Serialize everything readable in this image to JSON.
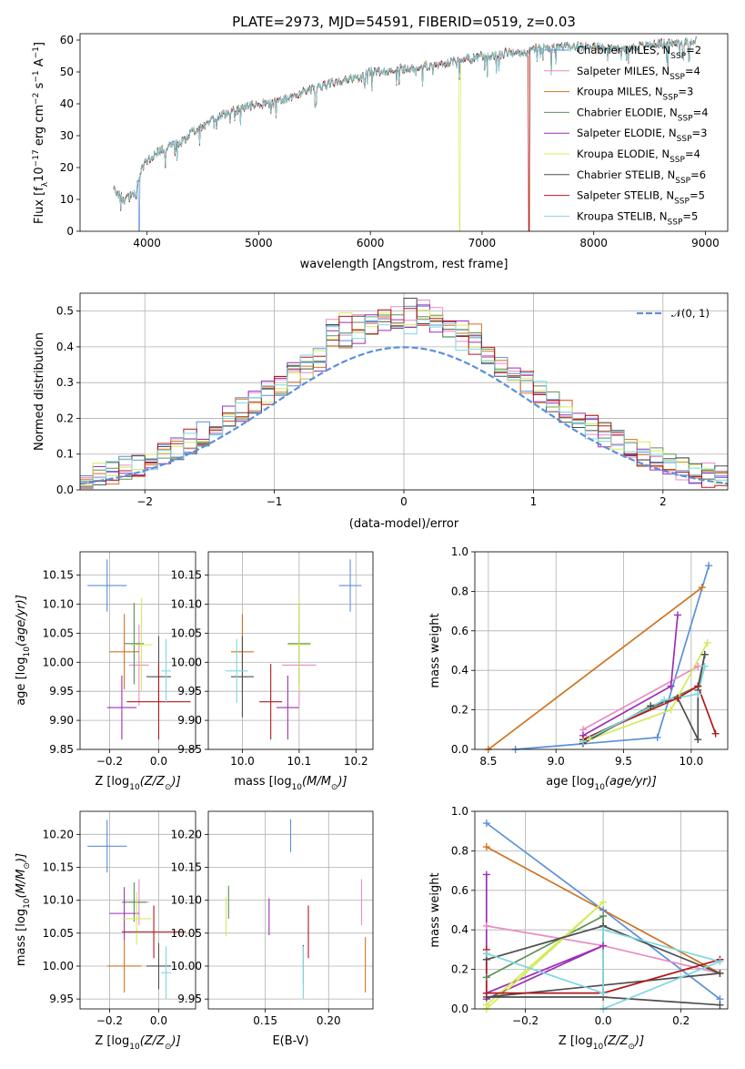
{
  "figure": {
    "title": "PLATE=2973, MJD=54591, FIBERID=0519, z=0.03"
  },
  "colors": {
    "Chabrier MILES": "#5b8fdb",
    "Salpeter MILES": "#e98cc3",
    "Kroupa MILES": "#cf7320",
    "Chabrier ELODIE": "#5e8f5a",
    "Salpeter ELODIE": "#9c2fb6",
    "Kroupa ELODIE": "#d4ea5a",
    "Chabrier STELIB": "#4e4e4e",
    "Salpeter STELIB": "#b3181b",
    "Kroupa STELIB": "#7fd7de"
  },
  "chart_data": [
    {
      "id": "spectrum",
      "type": "line",
      "title": "PLATE=2973, MJD=54591, FIBERID=0519, z=0.03",
      "xlabel": "wavelength [Angstrom, rest frame]",
      "ylabel_parts": [
        "Flux [f",
        "λ",
        "10",
        "−17",
        " erg cm",
        "−2",
        " s",
        "−1",
        " A",
        "−1",
        "]"
      ],
      "xlim": [
        3400,
        9200
      ],
      "ylim": [
        0,
        62
      ],
      "xticks": [
        4000,
        5000,
        6000,
        7000,
        8000,
        9000
      ],
      "yticks": [
        0,
        10,
        20,
        30,
        40,
        50,
        60
      ],
      "grid": false,
      "legend": "right",
      "legend_entries": [
        {
          "model": "Chabrier MILES",
          "n": "2"
        },
        {
          "model": "Salpeter MILES",
          "n": "4"
        },
        {
          "model": "Kroupa MILES",
          "n": "3"
        },
        {
          "model": "Chabrier ELODIE",
          "n": "4"
        },
        {
          "model": "Salpeter ELODIE",
          "n": "3"
        },
        {
          "model": "Kroupa ELODIE",
          "n": "4"
        },
        {
          "model": "Chabrier STELIB",
          "n": "6"
        },
        {
          "model": "Salpeter STELIB",
          "n": "5"
        },
        {
          "model": "Kroupa STELIB",
          "n": "5"
        }
      ],
      "legend_sub": "SSP",
      "continuum": [
        [
          3700,
          13
        ],
        [
          3800,
          10
        ],
        [
          3900,
          12
        ],
        [
          3950,
          20
        ],
        [
          4000,
          22
        ],
        [
          4100,
          25
        ],
        [
          4200,
          27
        ],
        [
          4300,
          28
        ],
        [
          4400,
          31
        ],
        [
          4500,
          33
        ],
        [
          4600,
          35
        ],
        [
          4700,
          37
        ],
        [
          4800,
          38
        ],
        [
          4900,
          39
        ],
        [
          5000,
          40
        ],
        [
          5100,
          40
        ],
        [
          5200,
          41
        ],
        [
          5300,
          42
        ],
        [
          5400,
          44
        ],
        [
          5500,
          45
        ],
        [
          5600,
          46
        ],
        [
          5700,
          47
        ],
        [
          5800,
          48
        ],
        [
          5900,
          48
        ],
        [
          6000,
          50
        ],
        [
          6100,
          50
        ],
        [
          6200,
          51
        ],
        [
          6300,
          51
        ],
        [
          6400,
          51
        ],
        [
          6500,
          52
        ],
        [
          6600,
          52
        ],
        [
          6700,
          53
        ],
        [
          6800,
          54
        ],
        [
          6900,
          54
        ],
        [
          7000,
          55
        ],
        [
          7100,
          55
        ],
        [
          7200,
          56
        ],
        [
          7300,
          56
        ],
        [
          7400,
          56
        ],
        [
          7500,
          58
        ],
        [
          7600,
          57
        ],
        [
          7700,
          58
        ],
        [
          7800,
          58
        ],
        [
          7900,
          58
        ],
        [
          8000,
          58
        ],
        [
          8200,
          57
        ],
        [
          8400,
          58
        ],
        [
          8600,
          59
        ],
        [
          8800,
          59
        ],
        [
          8900,
          60
        ]
      ],
      "dips": [
        {
          "model": "Kroupa ELODIE",
          "wavelength": 6800
        },
        {
          "model": "Kroupa MILES",
          "wavelength": 7420
        },
        {
          "model": "Chabrier MILES",
          "wavelength": 3930
        },
        {
          "model": "Salpeter STELIB",
          "wavelength": 7420
        }
      ]
    },
    {
      "id": "residuals",
      "type": "line",
      "xlabel": "(data-model)/error",
      "ylabel": "Normed distribution",
      "xlim": [
        -2.5,
        2.5
      ],
      "ylim": [
        0,
        0.55
      ],
      "xticks": [
        -2,
        -1,
        0,
        1,
        2
      ],
      "yticks": [
        0.0,
        0.1,
        0.2,
        0.3,
        0.4,
        0.5
      ],
      "grid": true,
      "legend": "upper right",
      "legend_label": "𝒩(0, 1)",
      "bins": [
        -2.5,
        2.5,
        50
      ]
    },
    {
      "id": "age-vs-Z",
      "type": "scatter",
      "xlabel_parts": [
        "Z [log",
        "10",
        "(Z/Z",
        "⊙",
        ")]"
      ],
      "ylabel_parts": [
        "age  [log",
        "10",
        "(age/yr)]"
      ],
      "xlim": [
        -0.32,
        0.15
      ],
      "ylim": [
        9.85,
        10.19
      ],
      "xticks": [
        -0.2,
        0.0
      ],
      "yticks": [
        9.85,
        9.9,
        9.95,
        10.0,
        10.05,
        10.1,
        10.15
      ],
      "grid": true,
      "points": [
        {
          "model": "Chabrier MILES",
          "x": -0.21,
          "xerr": 0.08,
          "y": 10.132,
          "yerr": 0.045
        },
        {
          "model": "Salpeter MILES",
          "x": -0.08,
          "xerr": 0.04,
          "y": 9.995,
          "yerr": 0.07
        },
        {
          "model": "Kroupa MILES",
          "x": -0.14,
          "xerr": 0.06,
          "y": 10.018,
          "yerr": 0.065
        },
        {
          "model": "Chabrier ELODIE",
          "x": -0.1,
          "xerr": 0.04,
          "y": 10.032,
          "yerr": 0.07
        },
        {
          "model": "Salpeter ELODIE",
          "x": -0.15,
          "xerr": 0.06,
          "y": 9.922,
          "yerr": 0.055
        },
        {
          "model": "Kroupa ELODIE",
          "x": -0.07,
          "xerr": 0.045,
          "y": 10.03,
          "yerr": 0.08
        },
        {
          "model": "Chabrier STELIB",
          "x": 0.0,
          "xerr": 0.05,
          "y": 9.975,
          "yerr": 0.07
        },
        {
          "model": "Salpeter STELIB",
          "x": 0.0,
          "xerr": 0.13,
          "y": 9.932,
          "yerr": 0.065
        },
        {
          "model": "Kroupa STELIB",
          "x": 0.03,
          "xerr": 0.02,
          "y": 9.985,
          "yerr": 0.055
        }
      ]
    },
    {
      "id": "age-vs-mass",
      "type": "scatter",
      "xlabel_parts": [
        "mass [log",
        "10",
        "(M/M",
        "⊙",
        ")]"
      ],
      "ylabel": "",
      "xlim": [
        9.94,
        10.23
      ],
      "ylim": [
        9.85,
        10.19
      ],
      "xticks": [
        10.0,
        10.1,
        10.2
      ],
      "yticks": [
        9.85,
        9.9,
        9.95,
        10.0,
        10.05,
        10.1,
        10.15
      ],
      "grid": true,
      "points": [
        {
          "model": "Chabrier MILES",
          "x": 10.19,
          "xerr": 0.02,
          "y": 10.132,
          "yerr": 0.045
        },
        {
          "model": "Salpeter MILES",
          "x": 10.1,
          "xerr": 0.03,
          "y": 9.995,
          "yerr": 0.07
        },
        {
          "model": "Kroupa MILES",
          "x": 10.0,
          "xerr": 0.02,
          "y": 10.018,
          "yerr": 0.065
        },
        {
          "model": "Chabrier ELODIE",
          "x": 10.1,
          "xerr": 0.02,
          "y": 10.032,
          "yerr": 0.07
        },
        {
          "model": "Salpeter ELODIE",
          "x": 10.08,
          "xerr": 0.02,
          "y": 9.922,
          "yerr": 0.055
        },
        {
          "model": "Kroupa ELODIE",
          "x": 10.1,
          "xerr": 0.02,
          "y": 10.03,
          "yerr": 0.08
        },
        {
          "model": "Chabrier STELIB",
          "x": 10.0,
          "xerr": 0.02,
          "y": 9.975,
          "yerr": 0.07
        },
        {
          "model": "Salpeter STELIB",
          "x": 10.05,
          "xerr": 0.02,
          "y": 9.932,
          "yerr": 0.065
        },
        {
          "model": "Kroupa STELIB",
          "x": 9.99,
          "xerr": 0.02,
          "y": 9.985,
          "yerr": 0.055
        }
      ]
    },
    {
      "id": "weight-vs-age",
      "type": "line",
      "xlabel_parts": [
        "age  [log",
        "10",
        "(age/yr)]"
      ],
      "ylabel": "mass weight",
      "xlim": [
        8.4,
        10.27
      ],
      "ylim": [
        0,
        1.0
      ],
      "xticks": [
        8.5,
        9.0,
        9.5,
        10.0
      ],
      "yticks": [
        0.0,
        0.2,
        0.4,
        0.6,
        0.8,
        1.0
      ],
      "grid": true,
      "series": [
        {
          "model": "Chabrier MILES",
          "points": [
            [
              8.7,
              0.0
            ],
            [
              9.75,
              0.06
            ],
            [
              10.13,
              0.93
            ]
          ]
        },
        {
          "model": "Salpeter MILES",
          "points": [
            [
              9.2,
              0.1
            ],
            [
              10.05,
              0.42
            ]
          ]
        },
        {
          "model": "Kroupa MILES",
          "points": [
            [
              8.5,
              0.0
            ],
            [
              10.08,
              0.82
            ]
          ]
        },
        {
          "model": "Chabrier ELODIE",
          "points": [
            [
              9.2,
              0.05
            ],
            [
              10.05,
              0.32
            ],
            [
              10.1,
              0.48
            ]
          ]
        },
        {
          "model": "Salpeter ELODIE",
          "points": [
            [
              9.2,
              0.07
            ],
            [
              9.85,
              0.32
            ],
            [
              9.9,
              0.68
            ]
          ]
        },
        {
          "model": "Kroupa ELODIE",
          "points": [
            [
              9.25,
              0.05
            ],
            [
              9.85,
              0.2
            ],
            [
              10.12,
              0.54
            ]
          ]
        },
        {
          "model": "Chabrier STELIB",
          "points": [
            [
              9.2,
              0.03
            ],
            [
              9.7,
              0.22
            ],
            [
              9.9,
              0.26
            ],
            [
              10.05,
              0.05
            ],
            [
              10.05,
              0.3
            ],
            [
              10.1,
              0.48
            ]
          ]
        },
        {
          "model": "Salpeter STELIB",
          "points": [
            [
              9.2,
              0.05
            ],
            [
              9.9,
              0.26
            ],
            [
              10.05,
              0.32
            ],
            [
              10.18,
              0.08
            ]
          ]
        },
        {
          "model": "Kroupa STELIB",
          "points": [
            [
              9.2,
              0.04
            ],
            [
              9.8,
              0.25
            ],
            [
              10.05,
              0.28
            ],
            [
              10.1,
              0.42
            ]
          ]
        }
      ]
    },
    {
      "id": "mass-vs-Z",
      "type": "scatter",
      "xlabel_parts": [
        "Z [log",
        "10",
        "(Z/Z",
        "⊙",
        ")]"
      ],
      "ylabel_parts": [
        "mass [log",
        "10",
        "(M/M",
        "⊙",
        ")]"
      ],
      "xlim": [
        -0.32,
        0.15
      ],
      "ylim": [
        9.935,
        10.235
      ],
      "xticks": [
        -0.2,
        0.0
      ],
      "yticks": [
        9.95,
        10.0,
        10.05,
        10.1,
        10.15,
        10.2
      ],
      "grid": true,
      "points": [
        {
          "model": "Chabrier MILES",
          "x": -0.21,
          "xerr": 0.08,
          "y": 10.182,
          "yerr": 0.04
        },
        {
          "model": "Salpeter MILES",
          "x": -0.08,
          "xerr": 0.04,
          "y": 10.097,
          "yerr": 0.035
        },
        {
          "model": "Kroupa MILES",
          "x": -0.14,
          "xerr": 0.07,
          "y": 10.0,
          "yerr": 0.04
        },
        {
          "model": "Chabrier ELODIE",
          "x": -0.1,
          "xerr": 0.05,
          "y": 10.097,
          "yerr": 0.03
        },
        {
          "model": "Salpeter ELODIE",
          "x": -0.14,
          "xerr": 0.06,
          "y": 10.08,
          "yerr": 0.04
        },
        {
          "model": "Kroupa ELODIE",
          "x": -0.09,
          "xerr": 0.06,
          "y": 10.072,
          "yerr": 0.04
        },
        {
          "model": "Chabrier STELIB",
          "x": 0.0,
          "xerr": 0.05,
          "y": 10.0,
          "yerr": 0.035
        },
        {
          "model": "Salpeter STELIB",
          "x": -0.02,
          "xerr": 0.13,
          "y": 10.052,
          "yerr": 0.04
        },
        {
          "model": "Kroupa STELIB",
          "x": 0.03,
          "xerr": 0.02,
          "y": 9.99,
          "yerr": 0.04
        }
      ]
    },
    {
      "id": "mass-vs-EBV",
      "type": "scatter",
      "xlabel": "E(B-V)",
      "ylabel": "",
      "xlim": [
        0.105,
        0.235
      ],
      "ylim": [
        9.935,
        10.235
      ],
      "xticks": [
        0.15,
        0.2
      ],
      "yticks": [
        9.95,
        10.0,
        10.05,
        10.1,
        10.15,
        10.2
      ],
      "grid": true,
      "points": [
        {
          "model": "Chabrier MILES",
          "x": 0.17,
          "y": 10.198,
          "yerr": 0.025
        },
        {
          "model": "Salpeter MILES",
          "x": 0.226,
          "y": 10.097,
          "yerr": 0.035
        },
        {
          "model": "Kroupa MILES",
          "x": 0.229,
          "y": 10.002,
          "yerr": 0.042
        },
        {
          "model": "Chabrier ELODIE",
          "x": 0.121,
          "y": 10.097,
          "yerr": 0.025
        },
        {
          "model": "Salpeter ELODIE",
          "x": 0.153,
          "y": 10.075,
          "yerr": 0.028
        },
        {
          "model": "Kroupa ELODIE",
          "x": 0.119,
          "y": 10.075,
          "yerr": 0.03
        },
        {
          "model": "Chabrier STELIB",
          "x": 0.18,
          "y": 10.002,
          "yerr": 0.03
        },
        {
          "model": "Salpeter STELIB",
          "x": 0.184,
          "y": 10.052,
          "yerr": 0.04
        },
        {
          "model": "Kroupa STELIB",
          "x": 0.18,
          "y": 9.99,
          "yerr": 0.04
        }
      ]
    },
    {
      "id": "weight-vs-Z",
      "type": "line",
      "xlabel_parts": [
        "Z [log",
        "10",
        "(Z/Z",
        "⊙",
        ")]"
      ],
      "ylabel": "mass weight",
      "xlim": [
        -0.33,
        0.32
      ],
      "ylim": [
        0,
        1.0
      ],
      "xticks": [
        -0.2,
        0.0,
        0.2
      ],
      "yticks": [
        0.0,
        0.2,
        0.4,
        0.6,
        0.8,
        1.0
      ],
      "grid": true,
      "series": [
        {
          "model": "Chabrier MILES",
          "points": [
            [
              -0.3,
              0.94
            ],
            [
              0.0,
              0.5
            ],
            [
              0.3,
              0.05
            ]
          ]
        },
        {
          "model": "Salpeter MILES",
          "points": [
            [
              -0.3,
              0.42
            ],
            [
              0.0,
              0.32
            ],
            [
              0.3,
              0.18
            ]
          ]
        },
        {
          "model": "Kroupa MILES",
          "points": [
            [
              -0.3,
              0.82
            ],
            [
              0.3,
              0.18
            ]
          ]
        },
        {
          "model": "Chabrier ELODIE",
          "points": [
            [
              -0.3,
              0.16
            ],
            [
              0.0,
              0.47
            ],
            [
              0.0,
              0.08
            ]
          ]
        },
        {
          "model": "Salpeter ELODIE",
          "points": [
            [
              -0.3,
              0.68
            ],
            [
              -0.3,
              0.05
            ],
            [
              0.0,
              0.32
            ],
            [
              -0.3,
              0.08
            ]
          ]
        },
        {
          "model": "Kroupa ELODIE",
          "points": [
            [
              -0.3,
              0.0
            ],
            [
              0.0,
              0.54
            ],
            [
              -0.3,
              0.02
            ]
          ]
        },
        {
          "model": "Chabrier STELIB",
          "points": [
            [
              -0.3,
              0.25
            ],
            [
              0.0,
              0.42
            ],
            [
              0.3,
              0.18
            ],
            [
              -0.3,
              0.06
            ],
            [
              0.0,
              0.06
            ],
            [
              0.3,
              0.02
            ]
          ]
        },
        {
          "model": "Salpeter STELIB",
          "points": [
            [
              -0.3,
              0.3
            ],
            [
              -0.3,
              0.08
            ],
            [
              0.0,
              0.08
            ],
            [
              0.3,
              0.25
            ]
          ]
        },
        {
          "model": "Kroupa STELIB",
          "points": [
            [
              -0.3,
              0.28
            ],
            [
              0.0,
              0.08
            ],
            [
              0.0,
              0.4
            ],
            [
              0.3,
              0.24
            ],
            [
              0.0,
              0.0
            ]
          ]
        }
      ]
    }
  ]
}
